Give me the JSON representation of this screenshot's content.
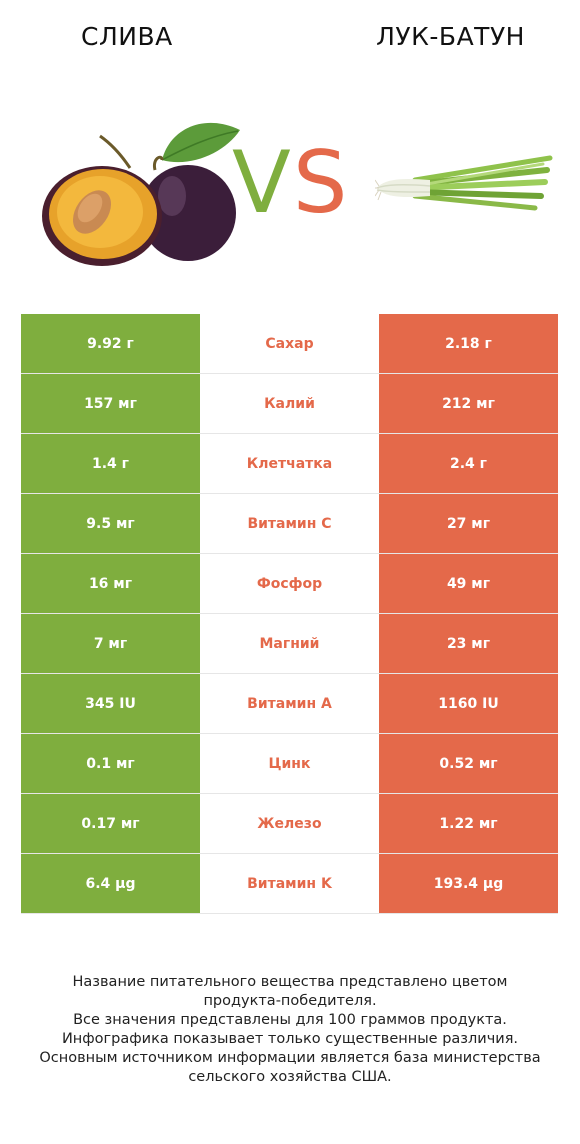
{
  "header": {
    "left_title": "СЛИВА",
    "right_title": "ЛУК-БАТУН",
    "vs_v": "V",
    "vs_s": "S"
  },
  "colors": {
    "winner_left": "#7fae3e",
    "winner_right": "#e4694a"
  },
  "rows": [
    {
      "left": "9.92 г",
      "name": "Сахар",
      "right": "2.18 г",
      "winner": "right"
    },
    {
      "left": "157 мг",
      "name": "Калий",
      "right": "212 мг",
      "winner": "right"
    },
    {
      "left": "1.4 г",
      "name": "Клетчатка",
      "right": "2.4 г",
      "winner": "right"
    },
    {
      "left": "9.5 мг",
      "name": "Витамин C",
      "right": "27 мг",
      "winner": "right"
    },
    {
      "left": "16 мг",
      "name": "Фосфор",
      "right": "49 мг",
      "winner": "right"
    },
    {
      "left": "7 мг",
      "name": "Магний",
      "right": "23 мг",
      "winner": "right"
    },
    {
      "left": "345 IU",
      "name": "Витамин A",
      "right": "1160 IU",
      "winner": "right"
    },
    {
      "left": "0.1 мг",
      "name": "Цинк",
      "right": "0.52 мг",
      "winner": "right"
    },
    {
      "left": "0.17 мг",
      "name": "Железо",
      "right": "1.22 мг",
      "winner": "right"
    },
    {
      "left": "6.4 µg",
      "name": "Витамин K",
      "right": "193.4 µg",
      "winner": "right"
    }
  ],
  "footer": [
    "Название питательного вещества представлено цветом",
    "продукта-победителя.",
    "Все значения представлены для 100 граммов продукта.",
    "Инфографика показывает только существенные различия.",
    "Основным источником информации является база министерства",
    "сельского хозяйства США."
  ]
}
